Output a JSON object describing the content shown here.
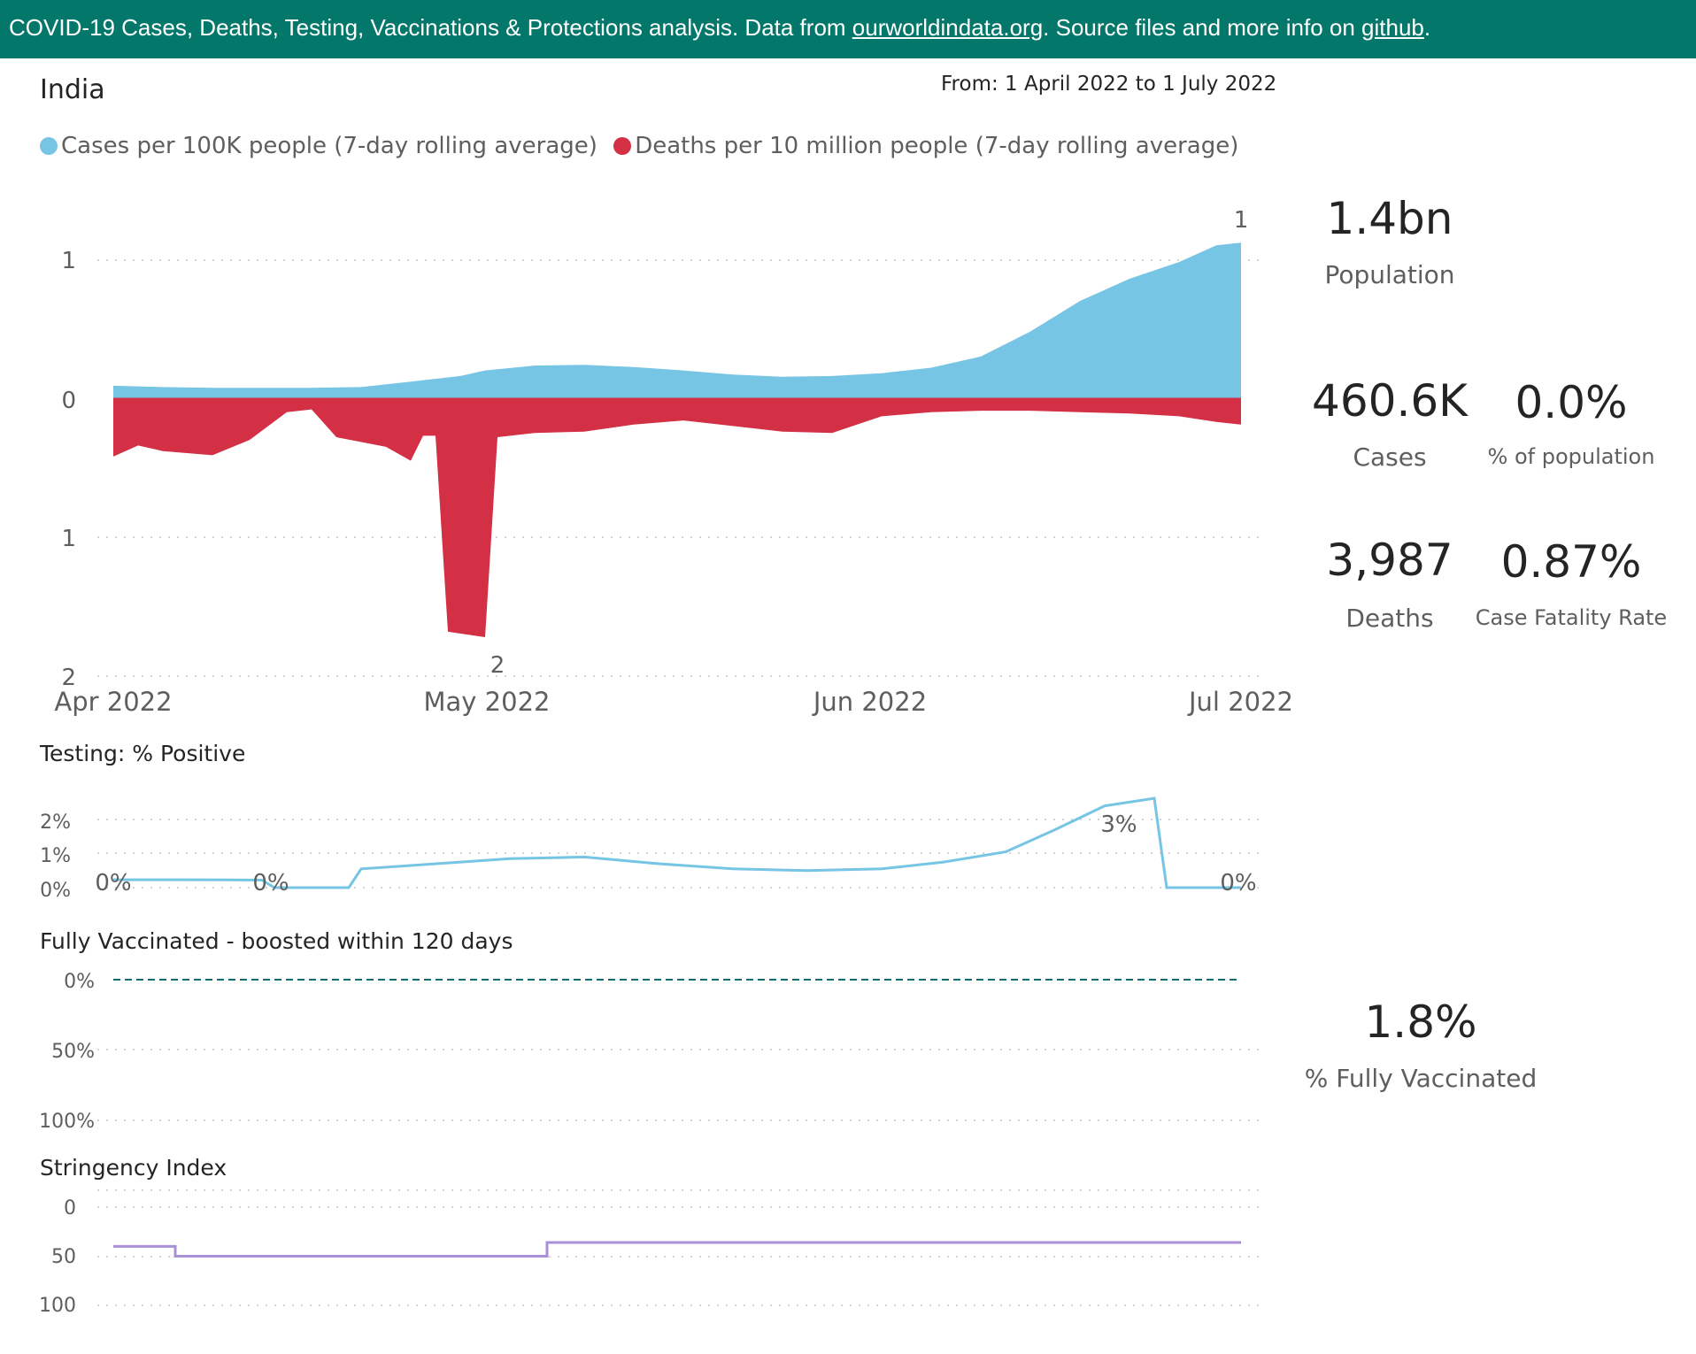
{
  "banner": {
    "text_before": "COVID-19 Cases, Deaths, Testing, Vaccinations & Protections analysis. Data from ",
    "link1": "ourworldindata.org",
    "text_middle": ". Source files and more info on ",
    "link2": "github",
    "text_after": "."
  },
  "country": "India",
  "date_range": "From: 1 April 2022 to 1 July 2022",
  "legend": {
    "cases": "Cases per 100K people (7-day rolling average)",
    "deaths": "Deaths per 10 million people (7-day rolling average)"
  },
  "colors": {
    "cases": "#76c5e4",
    "deaths": "#d32f45",
    "testing": "#76c5e4",
    "vaccinated": "#0e6b6b",
    "stringency": "#a88fd6",
    "banner": "#03776a"
  },
  "kpis": {
    "population": {
      "value": "1.4bn",
      "label": "Population"
    },
    "cases": {
      "value": "460.6K",
      "label": "Cases"
    },
    "pct_population": {
      "value": "0.0%",
      "label": "% of population"
    },
    "deaths": {
      "value": "3,987",
      "label": "Deaths"
    },
    "cfr": {
      "value": "0.87%",
      "label": "Case Fatality Rate"
    },
    "fully_vaccinated": {
      "value": "1.8%",
      "label": "% Fully Vaccinated"
    }
  },
  "chart_data": [
    {
      "id": "cases_deaths",
      "type": "area",
      "x_tick_labels": [
        "Apr 2022",
        "May 2022",
        "Jun 2022",
        "Jul 2022"
      ],
      "x_range": [
        "2022-04-01",
        "2022-07-01"
      ],
      "upper_axis_ticks": [
        "1",
        "0"
      ],
      "lower_axis_ticks": [
        "1",
        "2"
      ],
      "grid": true,
      "data_labels": [
        "1",
        "2"
      ],
      "series": [
        {
          "name": "Cases per 100K people (7-day rolling average)",
          "x": [
            "2022-04-01",
            "2022-04-05",
            "2022-04-09",
            "2022-04-13",
            "2022-04-17",
            "2022-04-21",
            "2022-04-25",
            "2022-04-29",
            "2022-05-01",
            "2022-05-05",
            "2022-05-09",
            "2022-05-13",
            "2022-05-17",
            "2022-05-21",
            "2022-05-25",
            "2022-05-29",
            "2022-06-02",
            "2022-06-06",
            "2022-06-10",
            "2022-06-14",
            "2022-06-18",
            "2022-06-22",
            "2022-06-26",
            "2022-06-29",
            "2022-07-01"
          ],
          "values": [
            0.09,
            0.08,
            0.075,
            0.075,
            0.075,
            0.08,
            0.12,
            0.16,
            0.2,
            0.235,
            0.24,
            0.225,
            0.2,
            0.17,
            0.155,
            0.16,
            0.18,
            0.22,
            0.3,
            0.48,
            0.7,
            0.86,
            0.98,
            1.1,
            1.12
          ]
        },
        {
          "name": "Deaths per 10 million people (7-day rolling average)",
          "x": [
            "2022-04-01",
            "2022-04-03",
            "2022-04-05",
            "2022-04-09",
            "2022-04-12",
            "2022-04-15",
            "2022-04-17",
            "2022-04-19",
            "2022-04-23",
            "2022-04-25",
            "2022-04-26",
            "2022-04-27",
            "2022-04-28",
            "2022-05-01",
            "2022-05-02",
            "2022-05-05",
            "2022-05-09",
            "2022-05-13",
            "2022-05-17",
            "2022-05-21",
            "2022-05-25",
            "2022-05-29",
            "2022-06-02",
            "2022-06-06",
            "2022-06-10",
            "2022-06-14",
            "2022-06-18",
            "2022-06-22",
            "2022-06-26",
            "2022-06-29",
            "2022-07-01"
          ],
          "values": [
            0.42,
            0.34,
            0.38,
            0.41,
            0.3,
            0.1,
            0.08,
            0.28,
            0.35,
            0.45,
            0.27,
            0.27,
            1.68,
            1.72,
            0.28,
            0.25,
            0.24,
            0.19,
            0.16,
            0.2,
            0.24,
            0.25,
            0.13,
            0.1,
            0.09,
            0.09,
            0.1,
            0.11,
            0.13,
            0.17,
            0.19
          ]
        }
      ]
    },
    {
      "id": "testing",
      "type": "line",
      "title": "Testing: % Positive",
      "y_ticks": [
        "2%",
        "1%",
        "0%"
      ],
      "ylim": [
        0,
        2.5
      ],
      "grid": true,
      "data_labels": [
        "0%",
        "0%",
        "3%",
        "0%"
      ],
      "series": [
        {
          "name": "% Positive",
          "x": [
            "2022-04-01",
            "2022-04-07",
            "2022-04-13",
            "2022-04-14",
            "2022-04-20",
            "2022-04-21",
            "2022-04-25",
            "2022-05-03",
            "2022-05-09",
            "2022-05-15",
            "2022-05-21",
            "2022-05-27",
            "2022-06-02",
            "2022-06-07",
            "2022-06-12",
            "2022-06-16",
            "2022-06-20",
            "2022-06-24",
            "2022-06-25",
            "2022-07-01"
          ],
          "values": [
            0.23,
            0.23,
            0.22,
            0.0,
            0.0,
            0.55,
            0.65,
            0.85,
            0.9,
            0.7,
            0.55,
            0.5,
            0.55,
            0.75,
            1.05,
            1.7,
            2.4,
            2.62,
            0.0,
            0.0
          ]
        }
      ]
    },
    {
      "id": "vaccinated",
      "type": "line",
      "title": "Fully Vaccinated - boosted within 120 days",
      "y_ticks": [
        "0%",
        "50%",
        "100%"
      ],
      "ylim": [
        0,
        100
      ],
      "grid": true,
      "series": [
        {
          "name": "boosted within 120 days",
          "x": [
            "2022-04-01",
            "2022-07-01"
          ],
          "values": [
            0,
            0
          ]
        }
      ]
    },
    {
      "id": "stringency",
      "type": "line",
      "title": "Stringency Index",
      "y_ticks": [
        "0",
        "50",
        "100"
      ],
      "ylim": [
        0,
        100
      ],
      "grid": true,
      "series": [
        {
          "name": "Stringency Index",
          "x": [
            "2022-04-01",
            "2022-04-06",
            "2022-04-06",
            "2022-05-06",
            "2022-05-06",
            "2022-07-01"
          ],
          "values": [
            40,
            40,
            50,
            50,
            36,
            36
          ]
        }
      ]
    }
  ]
}
